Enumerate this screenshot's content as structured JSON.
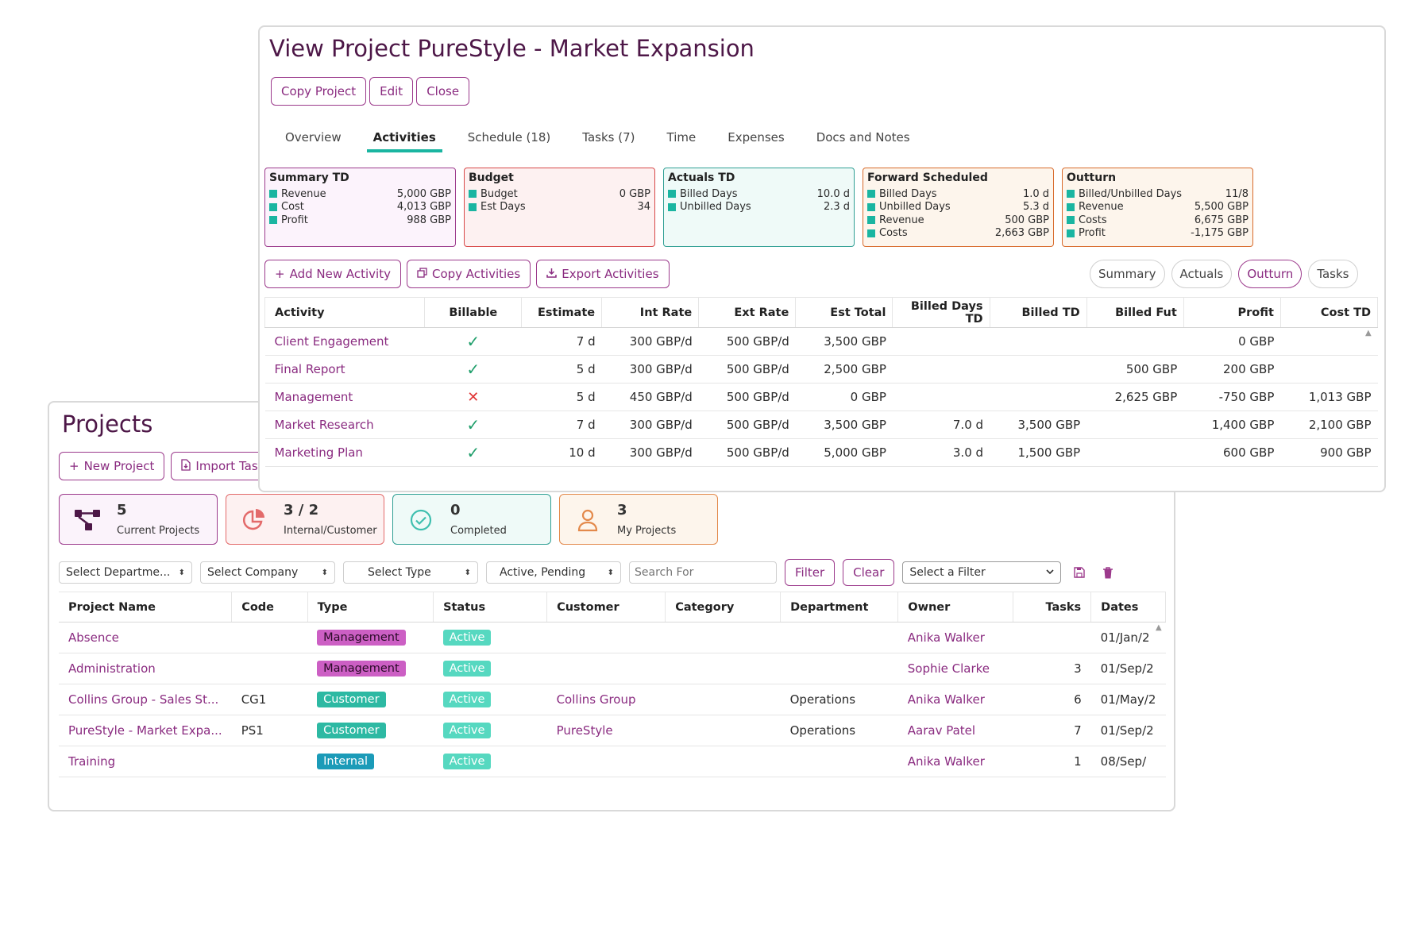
{
  "projects": {
    "title": "Projects",
    "actions": {
      "new_project": "New Project",
      "import_tasks": "Import Tasl"
    },
    "stats": [
      {
        "value": "5",
        "label": "Current Projects",
        "icon": "hierarchy-icon"
      },
      {
        "value": "3 / 2",
        "label": "Internal/Customer",
        "icon": "pie-chart-icon"
      },
      {
        "value": "0",
        "label": "Completed",
        "icon": "check-circle-icon"
      },
      {
        "value": "3",
        "label": "My Projects",
        "icon": "user-icon"
      }
    ],
    "filters": {
      "department": "Select Departme...",
      "company": "Select Company",
      "type": "Select Type",
      "status": "Active, Pending",
      "search_placeholder": "Search For",
      "filter_button": "Filter",
      "clear_button": "Clear",
      "saved_filter": "Select a Filter"
    },
    "columns": [
      "Project Name",
      "Code",
      "Type",
      "Status",
      "Customer",
      "Category",
      "Department",
      "Owner",
      "Tasks",
      "Dates"
    ],
    "rows": [
      {
        "name": "Absence",
        "code": "",
        "type": "Management",
        "status": "Active",
        "customer": "",
        "category": "",
        "department": "",
        "owner": "Anika Walker",
        "tasks": "",
        "dates": "01/Jan/2"
      },
      {
        "name": "Administration",
        "code": "",
        "type": "Management",
        "status": "Active",
        "customer": "",
        "category": "",
        "department": "",
        "owner": "Sophie Clarke",
        "tasks": "3",
        "dates": "01/Sep/2"
      },
      {
        "name": "Collins Group - Sales St...",
        "code": "CG1",
        "type": "Customer",
        "status": "Active",
        "customer": "Collins Group",
        "category": "",
        "department": "Operations",
        "owner": "Anika Walker",
        "tasks": "6",
        "dates": "01/May/2"
      },
      {
        "name": "PureStyle - Market Expa...",
        "code": "PS1",
        "type": "Customer",
        "status": "Active",
        "customer": "PureStyle",
        "category": "",
        "department": "Operations",
        "owner": "Aarav Patel",
        "tasks": "7",
        "dates": "01/Sep/2"
      },
      {
        "name": "Training",
        "code": "",
        "type": "Internal",
        "status": "Active",
        "customer": "",
        "category": "",
        "department": "",
        "owner": "Anika Walker",
        "tasks": "1",
        "dates": "08/Sep/"
      }
    ]
  },
  "view": {
    "title": "View Project PureStyle - Market Expansion",
    "actions": {
      "copy": "Copy Project",
      "edit": "Edit",
      "close": "Close"
    },
    "tabs": [
      "Overview",
      "Activities",
      "Schedule (18)",
      "Tasks (7)",
      "Time",
      "Expenses",
      "Docs and Notes"
    ],
    "active_tab": "Activities",
    "summary_cards": [
      {
        "title": "Summary TD",
        "rows": [
          [
            "Revenue",
            "5,000 GBP"
          ],
          [
            "Cost",
            "4,013 GBP"
          ],
          [
            "Profit",
            "988 GBP"
          ]
        ]
      },
      {
        "title": "Budget",
        "rows": [
          [
            "Budget",
            "0 GBP"
          ],
          [
            "Est Days",
            "34"
          ]
        ]
      },
      {
        "title": "Actuals TD",
        "rows": [
          [
            "Billed Days",
            "10.0 d"
          ],
          [
            "Unbilled Days",
            "2.3 d"
          ]
        ]
      },
      {
        "title": "Forward Scheduled",
        "rows": [
          [
            "Billed Days",
            "1.0 d"
          ],
          [
            "Unbilled Days",
            "5.3 d"
          ],
          [
            "Revenue",
            "500 GBP"
          ],
          [
            "Costs",
            "2,663 GBP"
          ]
        ]
      },
      {
        "title": "Outturn",
        "rows": [
          [
            "Billed/Unbilled Days",
            "11/8"
          ],
          [
            "Revenue",
            "5,500 GBP"
          ],
          [
            "Costs",
            "6,675 GBP"
          ],
          [
            "Profit",
            "-1,175 GBP"
          ]
        ]
      }
    ],
    "activity_actions": {
      "add": "Add New Activity",
      "copy": "Copy Activities",
      "export": "Export Activities"
    },
    "toggles": [
      "Summary",
      "Actuals",
      "Outturn",
      "Tasks"
    ],
    "active_toggle": "Outturn",
    "columns": [
      "Activity",
      "Billable",
      "Estimate",
      "Int Rate",
      "Ext Rate",
      "Est Total",
      "Billed Days TD",
      "Billed TD",
      "Billed Fut",
      "Profit",
      "Cost TD"
    ],
    "rows": [
      {
        "activity": "Client Engagement",
        "billable": true,
        "estimate": "7 d",
        "int_rate": "300 GBP/d",
        "ext_rate": "500 GBP/d",
        "est_total": "3,500 GBP",
        "billed_days_td": "",
        "billed_td": "",
        "billed_fut": "",
        "profit": "0 GBP",
        "cost_td": ""
      },
      {
        "activity": "Final Report",
        "billable": true,
        "estimate": "5 d",
        "int_rate": "300 GBP/d",
        "ext_rate": "500 GBP/d",
        "est_total": "2,500 GBP",
        "billed_days_td": "",
        "billed_td": "",
        "billed_fut": "500 GBP",
        "profit": "200 GBP",
        "cost_td": ""
      },
      {
        "activity": "Management",
        "billable": false,
        "estimate": "5 d",
        "int_rate": "450 GBP/d",
        "ext_rate": "500 GBP/d",
        "est_total": "0 GBP",
        "billed_days_td": "",
        "billed_td": "",
        "billed_fut": "2,625 GBP",
        "profit": "-750 GBP",
        "cost_td": "1,013 GBP"
      },
      {
        "activity": "Market Research",
        "billable": true,
        "estimate": "7 d",
        "int_rate": "300 GBP/d",
        "ext_rate": "500 GBP/d",
        "est_total": "3,500 GBP",
        "billed_days_td": "7.0 d",
        "billed_td": "3,500 GBP",
        "billed_fut": "",
        "profit": "1,400 GBP",
        "cost_td": "2,100 GBP"
      },
      {
        "activity": "Marketing Plan",
        "billable": true,
        "estimate": "10 d",
        "int_rate": "300 GBP/d",
        "ext_rate": "500 GBP/d",
        "est_total": "5,000 GBP",
        "billed_days_td": "3.0 d",
        "billed_td": "1,500 GBP",
        "billed_fut": "",
        "profit": "600 GBP",
        "cost_td": "900 GBP"
      }
    ]
  },
  "colors": {
    "brand": "#8a2b80",
    "accent": "#1ab5a1",
    "title": "#4d1747",
    "error": "#e03535"
  },
  "glyphs": {
    "plus": "+",
    "check": "✓",
    "cross": "✕",
    "arrow": "⬍",
    "scroll_up": "▲"
  }
}
